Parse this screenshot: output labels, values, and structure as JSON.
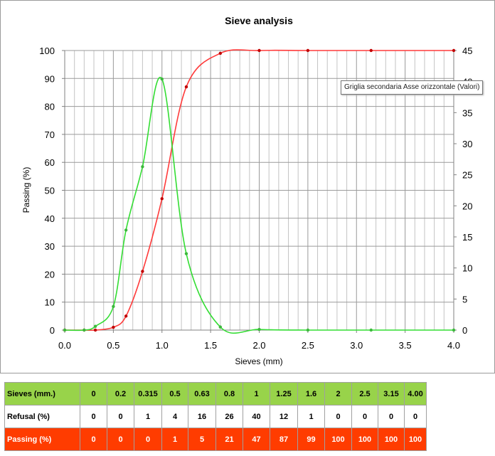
{
  "chart_data": {
    "type": "line",
    "title": "Sieve analysis",
    "xlabel": "Sieves (mm)",
    "ylabel": "Passing (%)",
    "xlim": [
      0,
      4
    ],
    "ylim": [
      0,
      100
    ],
    "y2lim": [
      0,
      45
    ],
    "grid": true,
    "legend": "none",
    "x_ticks": [
      "0.0",
      "0.5",
      "1.0",
      "1.5",
      "2.0",
      "2.5",
      "3.0",
      "3.5",
      "4.0"
    ],
    "y_ticks": [
      "0",
      "10",
      "20",
      "30",
      "40",
      "50",
      "60",
      "70",
      "80",
      "90",
      "100"
    ],
    "y2_ticks": [
      "0",
      "5",
      "10",
      "15",
      "20",
      "25",
      "30",
      "35",
      "40",
      "45"
    ],
    "series": [
      {
        "axis": "left",
        "color": "#ff3a3a",
        "x": [
          0,
          0.2,
          0.315,
          0.5,
          0.63,
          0.8,
          1.0,
          1.25,
          1.6,
          2.0,
          2.5,
          3.15,
          4.0
        ],
        "values": [
          0,
          0,
          0,
          1,
          5,
          21,
          47,
          87,
          99,
          100,
          100,
          100,
          100
        ]
      },
      {
        "axis": "right",
        "color": "#33dd33",
        "x": [
          0,
          0.2,
          0.315,
          0.5,
          0.63,
          0.8,
          1.0,
          1.25,
          1.6,
          2.0,
          2.5,
          3.15,
          4.0
        ],
        "values": [
          0,
          0,
          0.6,
          3.8,
          16.1,
          26.3,
          40.4,
          12.3,
          0.5,
          0.1,
          0,
          0,
          0
        ]
      }
    ]
  },
  "tooltip": "Griglia secondaria Asse orizzontale (Valori)",
  "table": {
    "rows": [
      {
        "label": "Sieves (mm.)",
        "values": [
          "0",
          "0.2",
          "0.315",
          "0.5",
          "0.63",
          "0.8",
          "1",
          "1.25",
          "1.6",
          "2",
          "2.5",
          "3.15",
          "4.00"
        ]
      },
      {
        "label": "Refusal (%)",
        "values": [
          "0",
          "0",
          "1",
          "4",
          "16",
          "26",
          "40",
          "12",
          "1",
          "0",
          "0",
          "0",
          "0"
        ]
      },
      {
        "label": "Passing (%)",
        "values": [
          "0",
          "0",
          "0",
          "1",
          "5",
          "21",
          "47",
          "87",
          "99",
          "100",
          "100",
          "100",
          "100"
        ]
      }
    ]
  }
}
